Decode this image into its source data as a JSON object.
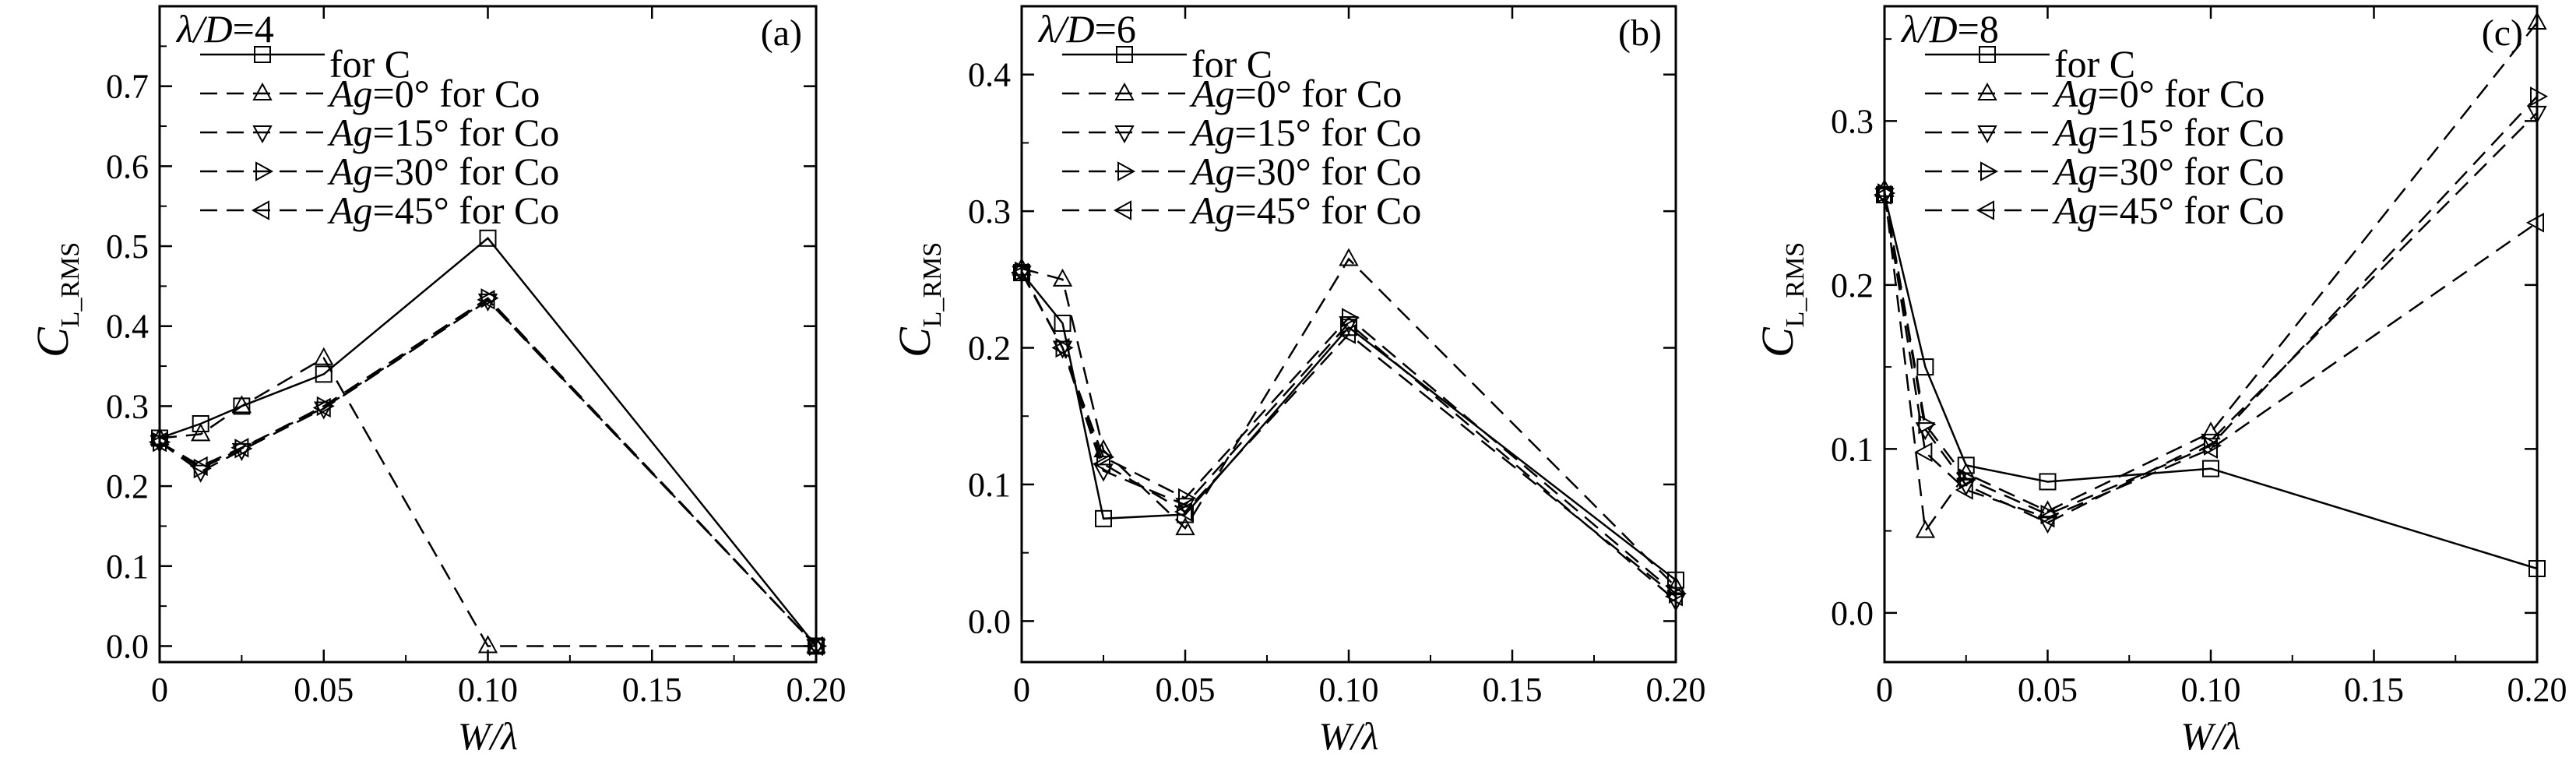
{
  "figure": {
    "background": "#ffffff",
    "line_color": "#000000"
  },
  "chart_data": [
    {
      "type": "line",
      "panel_label": "(a)",
      "title": "λ/D=4",
      "xlabel": "W/λ",
      "ylabel_main": "C",
      "ylabel_sub": "L_RMS",
      "xlim": [
        0,
        0.2
      ],
      "ylim": [
        -0.02,
        0.8
      ],
      "xticks": [
        0,
        0.05,
        0.1,
        0.15,
        0.2
      ],
      "xtick_labels": [
        "0",
        "0.05",
        "0.10",
        "0.15",
        "0.20"
      ],
      "yticks": [
        0,
        0.1,
        0.2,
        0.3,
        0.4,
        0.5,
        0.6,
        0.7
      ],
      "ytick_labels": [
        "0.0",
        "0.1",
        "0.2",
        "0.3",
        "0.4",
        "0.5",
        "0.6",
        "0.7"
      ],
      "grid": false,
      "legend_position": "top-left",
      "series": [
        {
          "name": "for C",
          "legend_prefix": "",
          "legend_italic": "",
          "legend_suffix": "for C",
          "style": "solid",
          "marker": "square",
          "x": [
            0,
            0.0125,
            0.025,
            0.05,
            0.1,
            0.2
          ],
          "y": [
            0.26,
            0.278,
            0.3,
            0.34,
            0.51,
            0.0
          ]
        },
        {
          "name": "Ag=0° for Co",
          "legend_prefix": "",
          "legend_italic": "Ag",
          "legend_suffix": "=0° for Co",
          "style": "dashed",
          "marker": "triangle-up",
          "x": [
            0,
            0.0125,
            0.025,
            0.05,
            0.1,
            0.2
          ],
          "y": [
            0.26,
            0.265,
            0.3,
            0.36,
            0.0,
            0.0
          ]
        },
        {
          "name": "Ag=15° for Co",
          "legend_prefix": "",
          "legend_italic": "Ag",
          "legend_suffix": "=15° for Co",
          "style": "dashed",
          "marker": "triangle-down",
          "x": [
            0,
            0.0125,
            0.025,
            0.05,
            0.1,
            0.2
          ],
          "y": [
            0.255,
            0.218,
            0.245,
            0.297,
            0.432,
            0.0
          ]
        },
        {
          "name": "Ag=30° for Co",
          "legend_prefix": "",
          "legend_italic": "Ag",
          "legend_suffix": "=30° for Co",
          "style": "dashed",
          "marker": "triangle-right",
          "x": [
            0,
            0.0125,
            0.025,
            0.05,
            0.1,
            0.2
          ],
          "y": [
            0.255,
            0.222,
            0.247,
            0.3,
            0.435,
            0.0
          ]
        },
        {
          "name": "Ag=45° for Co",
          "legend_prefix": "",
          "legend_italic": "Ag",
          "legend_suffix": "=45° for Co",
          "style": "dashed",
          "marker": "triangle-left",
          "x": [
            0,
            0.0125,
            0.025,
            0.05,
            0.1,
            0.2
          ],
          "y": [
            0.255,
            0.225,
            0.248,
            0.298,
            0.433,
            0.0
          ]
        }
      ]
    },
    {
      "type": "line",
      "panel_label": "(b)",
      "title": "λ/D=6",
      "xlabel": "W/λ",
      "ylabel_main": "C",
      "ylabel_sub": "L_RMS",
      "xlim": [
        0,
        0.2
      ],
      "ylim": [
        -0.03,
        0.45
      ],
      "xticks": [
        0,
        0.05,
        0.1,
        0.15,
        0.2
      ],
      "xtick_labels": [
        "0",
        "0.05",
        "0.10",
        "0.15",
        "0.20"
      ],
      "yticks": [
        0,
        0.1,
        0.2,
        0.3,
        0.4
      ],
      "ytick_labels": [
        "0.0",
        "0.1",
        "0.2",
        "0.3",
        "0.4"
      ],
      "grid": false,
      "legend_position": "top-left",
      "series": [
        {
          "name": "for C",
          "legend_prefix": "",
          "legend_italic": "",
          "legend_suffix": "for C",
          "style": "solid",
          "marker": "square",
          "x": [
            0,
            0.0125,
            0.025,
            0.05,
            0.1,
            0.2
          ],
          "y": [
            0.255,
            0.218,
            0.075,
            0.078,
            0.215,
            0.03
          ]
        },
        {
          "name": "Ag=0° for Co",
          "legend_prefix": "",
          "legend_italic": "Ag",
          "legend_suffix": "=0° for Co",
          "style": "dashed",
          "marker": "triangle-up",
          "x": [
            0,
            0.0125,
            0.025,
            0.05,
            0.1,
            0.2
          ],
          "y": [
            0.258,
            0.25,
            0.125,
            0.068,
            0.265,
            0.025
          ]
        },
        {
          "name": "Ag=15° for Co",
          "legend_prefix": "",
          "legend_italic": "Ag",
          "legend_suffix": "=15° for Co",
          "style": "dashed",
          "marker": "triangle-down",
          "x": [
            0,
            0.0125,
            0.025,
            0.05,
            0.1,
            0.2
          ],
          "y": [
            0.255,
            0.2,
            0.11,
            0.085,
            0.218,
            0.015
          ]
        },
        {
          "name": "Ag=30° for Co",
          "legend_prefix": "",
          "legend_italic": "Ag",
          "legend_suffix": "=30° for Co",
          "style": "dashed",
          "marker": "triangle-right",
          "x": [
            0,
            0.0125,
            0.025,
            0.05,
            0.1,
            0.2
          ],
          "y": [
            0.256,
            0.2,
            0.12,
            0.09,
            0.222,
            0.02
          ]
        },
        {
          "name": "Ag=45° for Co",
          "legend_prefix": "",
          "legend_italic": "Ag",
          "legend_suffix": "=45° for Co",
          "style": "dashed",
          "marker": "triangle-left",
          "x": [
            0,
            0.0125,
            0.025,
            0.05,
            0.1,
            0.2
          ],
          "y": [
            0.255,
            0.2,
            0.115,
            0.08,
            0.21,
            0.018
          ]
        }
      ]
    },
    {
      "type": "line",
      "panel_label": "(c)",
      "title": "λ/D=8",
      "xlabel": "W/λ",
      "ylabel_main": "C",
      "ylabel_sub": "L_RMS",
      "xlim": [
        0,
        0.2
      ],
      "ylim": [
        -0.03,
        0.37
      ],
      "xticks": [
        0,
        0.05,
        0.1,
        0.15,
        0.2
      ],
      "xtick_labels": [
        "0",
        "0.05",
        "0.10",
        "0.15",
        "0.20"
      ],
      "yticks": [
        0,
        0.1,
        0.2,
        0.3
      ],
      "ytick_labels": [
        "0.0",
        "0.1",
        "0.2",
        "0.3"
      ],
      "grid": false,
      "legend_position": "top-left",
      "series": [
        {
          "name": "for C",
          "legend_prefix": "",
          "legend_italic": "",
          "legend_suffix": "for C",
          "style": "solid",
          "marker": "square",
          "x": [
            0,
            0.0125,
            0.025,
            0.05,
            0.1,
            0.2
          ],
          "y": [
            0.255,
            0.15,
            0.09,
            0.08,
            0.088,
            0.027
          ]
        },
        {
          "name": "Ag=0° for Co",
          "legend_prefix": "",
          "legend_italic": "Ag",
          "legend_suffix": "=0° for Co",
          "style": "dashed",
          "marker": "triangle-up",
          "x": [
            0,
            0.0125,
            0.025,
            0.05,
            0.1,
            0.2
          ],
          "y": [
            0.258,
            0.05,
            0.085,
            0.062,
            0.11,
            0.36
          ]
        },
        {
          "name": "Ag=15° for Co",
          "legend_prefix": "",
          "legend_italic": "Ag",
          "legend_suffix": "=15° for Co",
          "style": "dashed",
          "marker": "triangle-down",
          "x": [
            0,
            0.0125,
            0.025,
            0.05,
            0.1,
            0.2
          ],
          "y": [
            0.255,
            0.112,
            0.078,
            0.055,
            0.105,
            0.305
          ]
        },
        {
          "name": "Ag=30° for Co",
          "legend_prefix": "",
          "legend_italic": "Ag",
          "legend_suffix": "=30° for Co",
          "style": "dashed",
          "marker": "triangle-right",
          "x": [
            0,
            0.0125,
            0.025,
            0.05,
            0.1,
            0.2
          ],
          "y": [
            0.256,
            0.115,
            0.082,
            0.06,
            0.102,
            0.315
          ]
        },
        {
          "name": "Ag=45° for Co",
          "legend_prefix": "",
          "legend_italic": "Ag",
          "legend_suffix": "=45° for Co",
          "style": "dashed",
          "marker": "triangle-left",
          "x": [
            0,
            0.0125,
            0.025,
            0.05,
            0.1,
            0.2
          ],
          "y": [
            0.255,
            0.098,
            0.075,
            0.058,
            0.1,
            0.238
          ]
        }
      ]
    }
  ]
}
